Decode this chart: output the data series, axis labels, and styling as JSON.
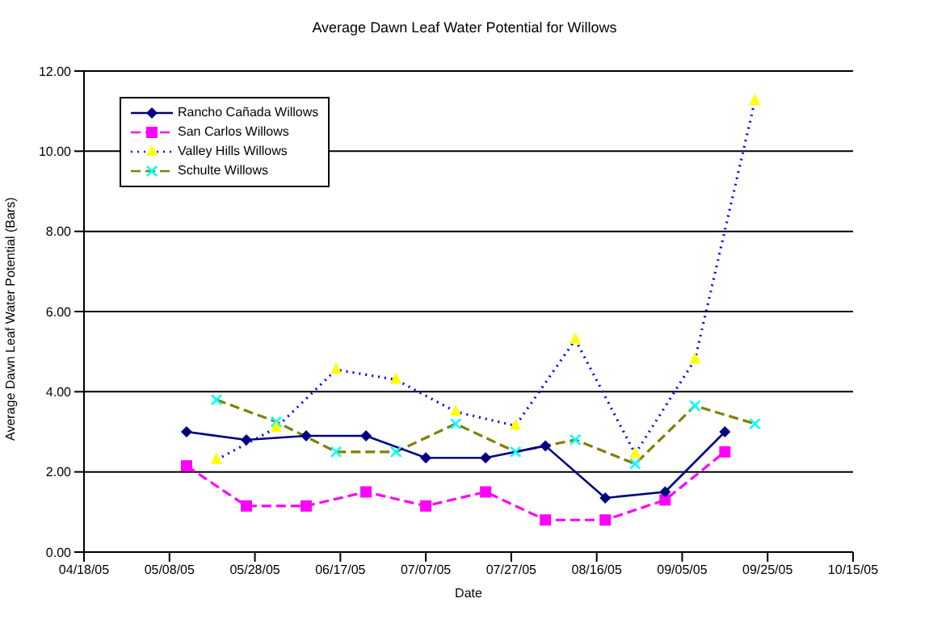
{
  "chart_data": {
    "type": "line",
    "title": "Average Dawn Leaf Water Potential for Willows",
    "xlabel": "Date",
    "ylabel": "Average Dawn Leaf Water Potential (Bars)",
    "xlim": [
      "2005-04-18",
      "2005-10-15"
    ],
    "xticks": [
      {
        "value": "2005-04-18",
        "label": "04/18/05"
      },
      {
        "value": "2005-05-08",
        "label": "05/08/05"
      },
      {
        "value": "2005-05-28",
        "label": "05/28/05"
      },
      {
        "value": "2005-06-17",
        "label": "06/17/05"
      },
      {
        "value": "2005-07-07",
        "label": "07/07/05"
      },
      {
        "value": "2005-07-27",
        "label": "07/27/05"
      },
      {
        "value": "2005-08-16",
        "label": "08/16/05"
      },
      {
        "value": "2005-09-05",
        "label": "09/05/05"
      },
      {
        "value": "2005-09-25",
        "label": "09/25/05"
      },
      {
        "value": "2005-10-15",
        "label": "10/15/05"
      }
    ],
    "ylim": [
      0,
      12
    ],
    "yticks": [
      {
        "value": 0,
        "label": "0.00"
      },
      {
        "value": 2,
        "label": "2.00"
      },
      {
        "value": 4,
        "label": "4.00"
      },
      {
        "value": 6,
        "label": "6.00"
      },
      {
        "value": 8,
        "label": "8.00"
      },
      {
        "value": 10,
        "label": "10.00"
      },
      {
        "value": 12,
        "label": "12.00"
      }
    ],
    "grid": "y",
    "legend": "top left",
    "series": [
      {
        "name": "Rancho Cañada Willows",
        "color": "#000080",
        "marker": "diamond",
        "line_style": "solid",
        "x": [
          "2005-05-12",
          "2005-05-26",
          "2005-06-09",
          "2005-06-23",
          "2005-07-07",
          "2005-07-21",
          "2005-08-04",
          "2005-08-18",
          "2005-09-01",
          "2005-09-15"
        ],
        "values": [
          3.0,
          2.8,
          2.9,
          2.9,
          2.35,
          2.35,
          2.65,
          1.35,
          1.5,
          3.0
        ]
      },
      {
        "name": "San Carlos Willows",
        "color": "#ff00ff",
        "marker": "square",
        "line_style": "dashed",
        "x": [
          "2005-05-12",
          "2005-05-26",
          "2005-06-09",
          "2005-06-23",
          "2005-07-07",
          "2005-07-21",
          "2005-08-04",
          "2005-08-18",
          "2005-09-01",
          "2005-09-15"
        ],
        "values": [
          2.15,
          1.15,
          1.15,
          1.5,
          1.15,
          1.5,
          0.8,
          0.8,
          1.3,
          2.5
        ]
      },
      {
        "name": "Valley Hills Willows",
        "color": "#0000ff",
        "colors": [
          "#ffff00",
          "#ffff00",
          "#ffff00",
          "#ffff00",
          "#ffff00",
          "#ffff00",
          "#ffff00",
          "#ffff00",
          "#ffff00",
          "#ffff00"
        ],
        "marker": "triangle",
        "line_style": "dotted",
        "x": [
          "2005-05-19",
          "2005-06-02",
          "2005-06-16",
          "2005-06-30",
          "2005-07-14",
          "2005-07-28",
          "2005-08-11",
          "2005-08-25",
          "2005-09-08",
          "2005-09-22"
        ],
        "values": [
          2.3,
          3.1,
          4.55,
          4.3,
          3.5,
          3.15,
          5.3,
          2.45,
          4.8,
          11.25
        ]
      },
      {
        "name": "Schulte Willows",
        "color": "#808000",
        "colors": [
          "#00ffff",
          "#00ffff",
          "#00ffff",
          "#00ffff",
          "#00ffff",
          "#00ffff",
          "#00ffff",
          "#00ffff",
          "#00ffff",
          "#00ffff"
        ],
        "marker": "cross",
        "line_style": "dashed",
        "x": [
          "2005-05-19",
          "2005-06-02",
          "2005-06-16",
          "2005-06-30",
          "2005-07-14",
          "2005-07-28",
          "2005-08-11",
          "2005-08-25",
          "2005-09-08",
          "2005-09-22"
        ],
        "values": [
          3.8,
          3.25,
          2.5,
          2.5,
          3.2,
          2.5,
          2.8,
          2.2,
          3.65,
          3.2
        ]
      }
    ]
  }
}
